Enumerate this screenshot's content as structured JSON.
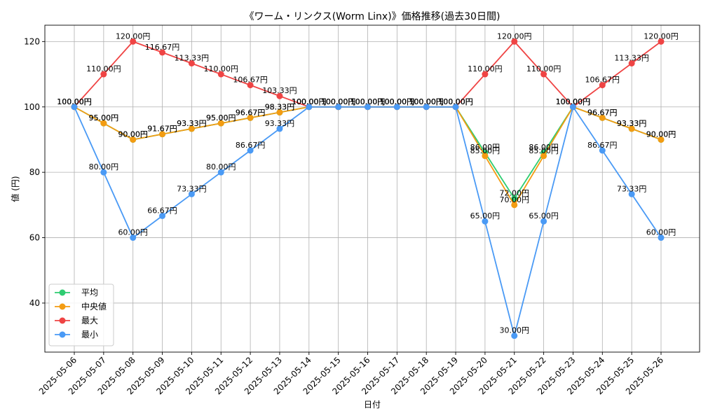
{
  "chart_data": {
    "type": "line",
    "title": "《ワーム・リンクス(Worm Linx)》価格推移(過去30日間)",
    "xlabel": "日付",
    "ylabel": "値 (円)",
    "categories": [
      "2025-05-06",
      "2025-05-07",
      "2025-05-08",
      "2025-05-09",
      "2025-05-10",
      "2025-05-11",
      "2025-05-12",
      "2025-05-13",
      "2025-05-14",
      "2025-05-15",
      "2025-05-16",
      "2025-05-17",
      "2025-05-18",
      "2025-05-19",
      "2025-05-20",
      "2025-05-21",
      "2025-05-22",
      "2025-05-23",
      "2025-05-24",
      "2025-05-25",
      "2025-05-26"
    ],
    "ylim": [
      25,
      125
    ],
    "yticks": [
      40,
      60,
      80,
      100,
      120
    ],
    "grid": true,
    "legend_position": "lower-left",
    "label_suffix": "円",
    "series": [
      {
        "name": "平均",
        "color": "#2ecc71",
        "values": [
          100,
          95,
          90,
          91.67,
          93.33,
          95,
          96.67,
          98.33,
          100,
          100,
          100,
          100,
          100,
          100,
          86,
          72,
          86,
          100,
          96.67,
          93.33,
          90
        ]
      },
      {
        "name": "中央値",
        "color": "#f39c12",
        "values": [
          100,
          95,
          90,
          91.67,
          93.33,
          95,
          96.67,
          98.33,
          100,
          100,
          100,
          100,
          100,
          100,
          85,
          70,
          85,
          100,
          96.67,
          93.33,
          90
        ]
      },
      {
        "name": "最大",
        "color": "#ef4444",
        "values": [
          100,
          110,
          120,
          116.67,
          113.33,
          110,
          106.67,
          103.33,
          100,
          100,
          100,
          100,
          100,
          100,
          110,
          120,
          110,
          100,
          106.67,
          113.33,
          120
        ]
      },
      {
        "name": "最小",
        "color": "#4a9af5",
        "values": [
          100,
          80,
          60,
          66.67,
          73.33,
          80,
          86.67,
          93.33,
          100,
          100,
          100,
          100,
          100,
          100,
          65,
          30,
          65,
          100,
          86.67,
          73.33,
          60
        ]
      }
    ]
  }
}
